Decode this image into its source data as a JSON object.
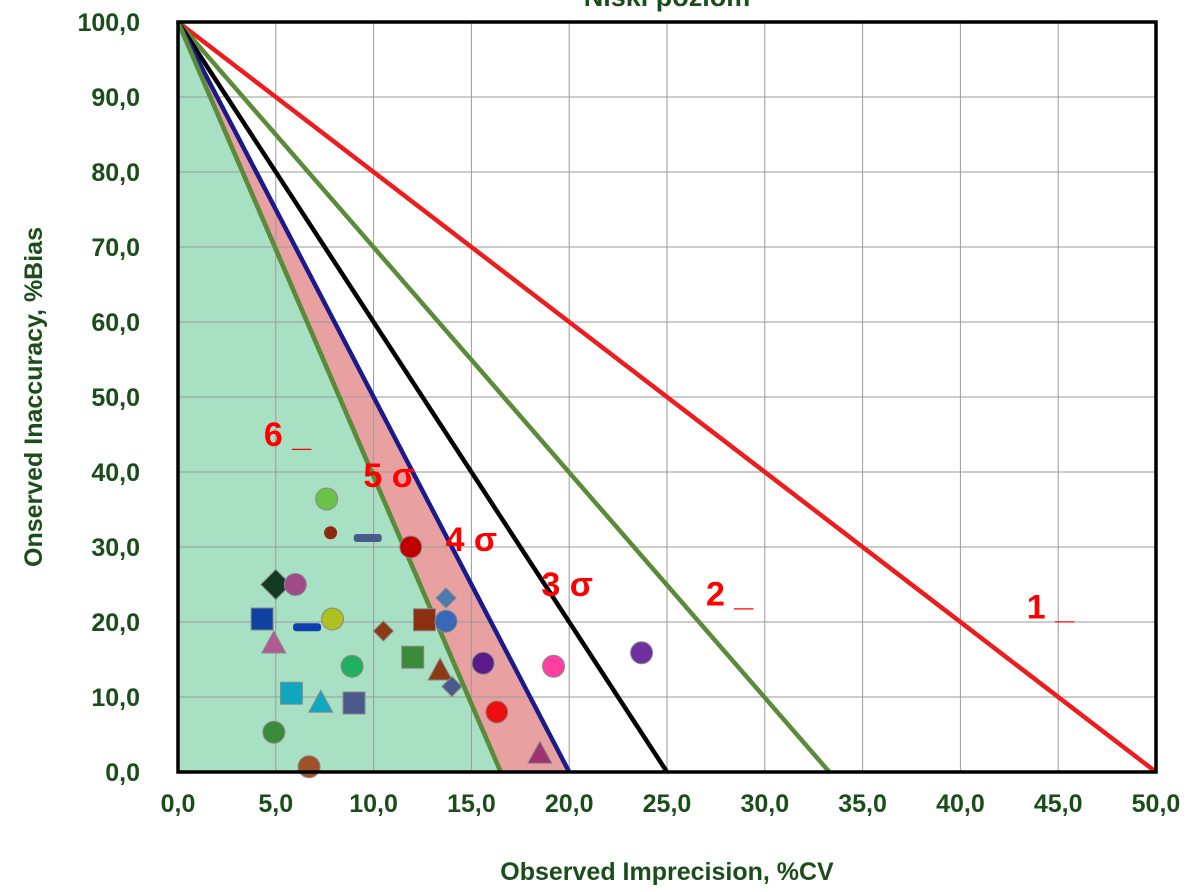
{
  "chart_data": {
    "type": "scatter",
    "title": "Niski poziom",
    "xlabel": "Observed Imprecision, %CV",
    "ylabel": "Onserved Inaccuracy, %Bias",
    "xlim": [
      0,
      50
    ],
    "ylim": [
      0,
      100
    ],
    "grid": true,
    "x_ticks": [
      0,
      5,
      10,
      15,
      20,
      25,
      30,
      35,
      40,
      45,
      50
    ],
    "y_ticks": [
      0,
      10,
      20,
      30,
      40,
      50,
      60,
      70,
      80,
      90,
      100
    ],
    "x_tick_labels": [
      "0,0",
      "5,0",
      "10,0",
      "15,0",
      "20,0",
      "25,0",
      "30,0",
      "35,0",
      "40,0",
      "45,0",
      "50,0"
    ],
    "y_tick_labels": [
      "0,0",
      "10,0",
      "20,0",
      "30,0",
      "40,0",
      "50,0",
      "60,0",
      "70,0",
      "80,0",
      "90,0",
      "100,0"
    ],
    "sigma_lines": [
      {
        "label": "1 _",
        "x_intercept": 50,
        "color": "#ee1c1c"
      },
      {
        "label": "2 _",
        "x_intercept": 33.3,
        "color": "#5a8a3a"
      },
      {
        "label": "3 σ",
        "x_intercept": 25,
        "color": "#000000"
      },
      {
        "label": "4 σ",
        "x_intercept": 20,
        "color": "#1a1a8c"
      },
      {
        "label": "5 σ",
        "x_intercept": 16.5,
        "color": "#5a8a3a"
      },
      {
        "label": "6 _",
        "x_intercept": 16.5,
        "color": "#5a8a3a"
      }
    ],
    "regions": [
      {
        "name": "six-sigma-zone",
        "x_intercept": 16.5,
        "color": "#a8e0c4"
      },
      {
        "name": "five-to-four-sigma-zone",
        "x_from": 16.5,
        "x_to": 20,
        "color": "#e8a0a0"
      }
    ],
    "points": [
      {
        "x": 7.6,
        "y": 36.4,
        "shape": "circle",
        "color": "#6bc44a"
      },
      {
        "x": 7.8,
        "y": 31.9,
        "shape": "circle-small",
        "color": "#8b2a10"
      },
      {
        "x": 9.7,
        "y": 31.2,
        "shape": "dash",
        "color": "#4a5a8a"
      },
      {
        "x": 11.9,
        "y": 30.0,
        "shape": "circle",
        "color": "#c00000"
      },
      {
        "x": 5.0,
        "y": 25.0,
        "shape": "diamond",
        "color": "#113a20"
      },
      {
        "x": 6.0,
        "y": 25.0,
        "shape": "circle",
        "color": "#a04a8a"
      },
      {
        "x": 13.7,
        "y": 23.2,
        "shape": "diamond",
        "color": "#4a7ab0"
      },
      {
        "x": 4.3,
        "y": 20.4,
        "shape": "square",
        "color": "#1040a0"
      },
      {
        "x": 7.9,
        "y": 20.4,
        "shape": "circle",
        "color": "#b0c020"
      },
      {
        "x": 12.6,
        "y": 20.3,
        "shape": "square",
        "color": "#8b3010"
      },
      {
        "x": 13.7,
        "y": 20.1,
        "shape": "circle",
        "color": "#3a68b8"
      },
      {
        "x": 6.6,
        "y": 19.3,
        "shape": "dash",
        "color": "#1040b0"
      },
      {
        "x": 10.5,
        "y": 18.8,
        "shape": "diamond",
        "color": "#8b3a14"
      },
      {
        "x": 4.9,
        "y": 17.2,
        "shape": "triangle",
        "color": "#b05a90"
      },
      {
        "x": 12.0,
        "y": 15.3,
        "shape": "square",
        "color": "#3a8a3a"
      },
      {
        "x": 15.6,
        "y": 14.5,
        "shape": "circle",
        "color": "#5a1a8a"
      },
      {
        "x": 8.9,
        "y": 14.1,
        "shape": "circle",
        "color": "#20b060"
      },
      {
        "x": 19.2,
        "y": 14.1,
        "shape": "circle",
        "color": "#ff40a0"
      },
      {
        "x": 13.4,
        "y": 13.6,
        "shape": "triangle",
        "color": "#8b3a14"
      },
      {
        "x": 23.7,
        "y": 15.9,
        "shape": "circle",
        "color": "#7030a0"
      },
      {
        "x": 14.0,
        "y": 11.4,
        "shape": "diamond",
        "color": "#4a5a8a"
      },
      {
        "x": 5.8,
        "y": 10.5,
        "shape": "square",
        "color": "#10a8c0"
      },
      {
        "x": 7.3,
        "y": 9.3,
        "shape": "triangle",
        "color": "#10a8c0"
      },
      {
        "x": 9.0,
        "y": 9.2,
        "shape": "square",
        "color": "#4a5a8a"
      },
      {
        "x": 16.3,
        "y": 8.0,
        "shape": "circle",
        "color": "#ee1010"
      },
      {
        "x": 4.9,
        "y": 5.3,
        "shape": "circle",
        "color": "#3a8a3a"
      },
      {
        "x": 18.5,
        "y": 2.5,
        "shape": "triangle",
        "color": "#a03070"
      },
      {
        "x": 6.7,
        "y": 0.7,
        "shape": "circle",
        "color": "#a0502a"
      }
    ]
  }
}
